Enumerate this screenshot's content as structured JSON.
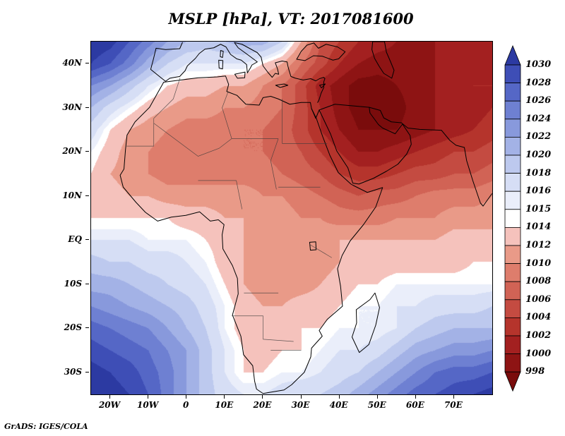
{
  "credit": "GrADS: IGES/COLA",
  "chart_data": {
    "type": "heatmap",
    "title": "MSLP [hPa], VT: 2017081600",
    "variable": "MSLP",
    "units": "hPa",
    "valid_time": "2017081600",
    "lon_range": [
      -25,
      80
    ],
    "lat_range": [
      -35,
      45
    ],
    "grid_on": false,
    "legend_position": "right-colorbar",
    "x_ticks": [
      {
        "label": "20W",
        "lon": -20
      },
      {
        "label": "10W",
        "lon": -10
      },
      {
        "label": "0",
        "lon": 0
      },
      {
        "label": "10E",
        "lon": 10
      },
      {
        "label": "20E",
        "lon": 20
      },
      {
        "label": "30E",
        "lon": 30
      },
      {
        "label": "40E",
        "lon": 40
      },
      {
        "label": "50E",
        "lon": 50
      },
      {
        "label": "60E",
        "lon": 60
      },
      {
        "label": "70E",
        "lon": 70
      }
    ],
    "y_ticks": [
      {
        "label": "40N",
        "lat": 40
      },
      {
        "label": "30N",
        "lat": 30
      },
      {
        "label": "20N",
        "lat": 20
      },
      {
        "label": "10N",
        "lat": 10
      },
      {
        "label": "EQ",
        "lat": 0
      },
      {
        "label": "10S",
        "lat": -10
      },
      {
        "label": "20S",
        "lat": -20
      },
      {
        "label": "30S",
        "lat": -30
      }
    ],
    "colorbar": {
      "levels": [
        998,
        1000,
        1002,
        1004,
        1006,
        1008,
        1010,
        1012,
        1014,
        1015,
        1016,
        1018,
        1020,
        1022,
        1024,
        1026,
        1028,
        1030
      ],
      "labels": [
        "1030",
        "1028",
        "1026",
        "1024",
        "1022",
        "1020",
        "1018",
        "1016",
        "1015",
        "1014",
        "1012",
        "1010",
        "1008",
        "1006",
        "1004",
        "1002",
        "1000",
        "998"
      ],
      "colors": [
        "#7a0c0c",
        "#8e1414",
        "#a32020",
        "#b5342c",
        "#c44b41",
        "#d16355",
        "#de7d6c",
        "#e99a88",
        "#f5c2bc",
        "#ffffff",
        "#eaeefa",
        "#d6def5",
        "#bdc9ee",
        "#a3b2e6",
        "#8899dc",
        "#6e80d2",
        "#5567c6",
        "#3e4eb6",
        "#2c3aa2"
      ]
    },
    "grid": {
      "lons": [
        -25,
        -20,
        -15,
        -10,
        -5,
        0,
        5,
        10,
        15,
        20,
        25,
        30,
        35,
        40,
        45,
        50,
        55,
        60,
        65,
        70,
        75,
        80
      ],
      "lats": [
        45,
        40,
        35,
        30,
        25,
        20,
        15,
        10,
        5,
        0,
        -5,
        -10,
        -15,
        -20,
        -25,
        -30,
        -35
      ],
      "values": [
        [
          1032,
          1031,
          1028,
          1025,
          1022,
          1020,
          1019,
          1020,
          1021,
          1021,
          1018,
          1012,
          1006,
          1004,
          1002,
          1001,
          1000,
          1000,
          1000,
          1001,
          1002,
          1002
        ],
        [
          1030,
          1028,
          1025,
          1021,
          1018,
          1016,
          1016,
          1016,
          1016,
          1014,
          1012,
          1008,
          1005,
          1002,
          1000,
          999,
          999,
          999,
          1000,
          1000,
          1001,
          1002
        ],
        [
          1024,
          1022,
          1019,
          1016,
          1014,
          1013,
          1013,
          1012,
          1012,
          1010,
          1008,
          1005,
          1001,
          999,
          997,
          997,
          998,
          999,
          1000,
          1001,
          1002,
          1002
        ],
        [
          1020,
          1017,
          1015,
          1013,
          1012,
          1011,
          1011,
          1010,
          1010,
          1009,
          1008,
          1005,
          1002,
          999,
          997,
          996,
          997,
          999,
          1000,
          1001,
          1001,
          1002
        ],
        [
          1017,
          1014,
          1012,
          1011,
          1010,
          1009,
          1009,
          1009,
          1008,
          1008,
          1007,
          1005,
          1002,
          1000,
          998,
          998,
          998,
          999,
          1000,
          1001,
          1002,
          1003
        ],
        [
          1015,
          1013,
          1011,
          1010,
          1009,
          1008,
          1008,
          1008,
          1008,
          1008,
          1007,
          1006,
          1004,
          1002,
          1000,
          1000,
          1001,
          1002,
          1003,
          1004,
          1004,
          1005
        ],
        [
          1014,
          1012,
          1011,
          1010,
          1009,
          1009,
          1009,
          1009,
          1009,
          1009,
          1008,
          1007,
          1006,
          1004,
          1003,
          1003,
          1004,
          1005,
          1005,
          1006,
          1006,
          1007
        ],
        [
          1013,
          1013,
          1012,
          1012,
          1011,
          1011,
          1011,
          1011,
          1011,
          1010,
          1010,
          1009,
          1008,
          1007,
          1006,
          1007,
          1007,
          1008,
          1009,
          1009,
          1009,
          1010
        ],
        [
          1014,
          1014,
          1014,
          1014,
          1014,
          1013,
          1013,
          1012,
          1012,
          1011,
          1011,
          1010,
          1010,
          1009,
          1009,
          1009,
          1010,
          1010,
          1010,
          1011,
          1011,
          1011
        ],
        [
          1016,
          1016,
          1016,
          1015,
          1015,
          1015,
          1014,
          1013,
          1012,
          1011,
          1011,
          1011,
          1011,
          1012,
          1012,
          1012,
          1012,
          1012,
          1012,
          1013,
          1013,
          1013
        ],
        [
          1019,
          1018,
          1018,
          1017,
          1017,
          1016,
          1015,
          1013,
          1012,
          1011,
          1010,
          1011,
          1011,
          1012,
          1013,
          1013,
          1013,
          1013,
          1013,
          1013,
          1014,
          1014
        ],
        [
          1021,
          1021,
          1020,
          1019,
          1018,
          1017,
          1016,
          1014,
          1012,
          1011,
          1011,
          1011,
          1012,
          1013,
          1014,
          1014,
          1015,
          1015,
          1015,
          1015,
          1015,
          1015
        ],
        [
          1024,
          1023,
          1022,
          1021,
          1020,
          1019,
          1017,
          1015,
          1013,
          1012,
          1012,
          1013,
          1013,
          1014,
          1015,
          1015,
          1016,
          1016,
          1017,
          1017,
          1017,
          1018
        ],
        [
          1027,
          1026,
          1025,
          1024,
          1022,
          1020,
          1018,
          1015,
          1013,
          1013,
          1013,
          1014,
          1014,
          1015,
          1015,
          1015,
          1016,
          1018,
          1019,
          1020,
          1020,
          1020
        ],
        [
          1029,
          1028,
          1027,
          1026,
          1024,
          1022,
          1019,
          1016,
          1014,
          1013,
          1014,
          1014,
          1015,
          1016,
          1016,
          1017,
          1019,
          1021,
          1022,
          1023,
          1023,
          1024
        ],
        [
          1031,
          1030,
          1029,
          1027,
          1025,
          1022,
          1019,
          1016,
          1014,
          1014,
          1015,
          1015,
          1016,
          1017,
          1018,
          1020,
          1022,
          1024,
          1026,
          1027,
          1027,
          1028
        ],
        [
          1032,
          1031,
          1030,
          1028,
          1025,
          1022,
          1019,
          1017,
          1016,
          1016,
          1017,
          1018,
          1018,
          1019,
          1021,
          1023,
          1025,
          1027,
          1028,
          1029,
          1030,
          1031
        ]
      ]
    }
  }
}
